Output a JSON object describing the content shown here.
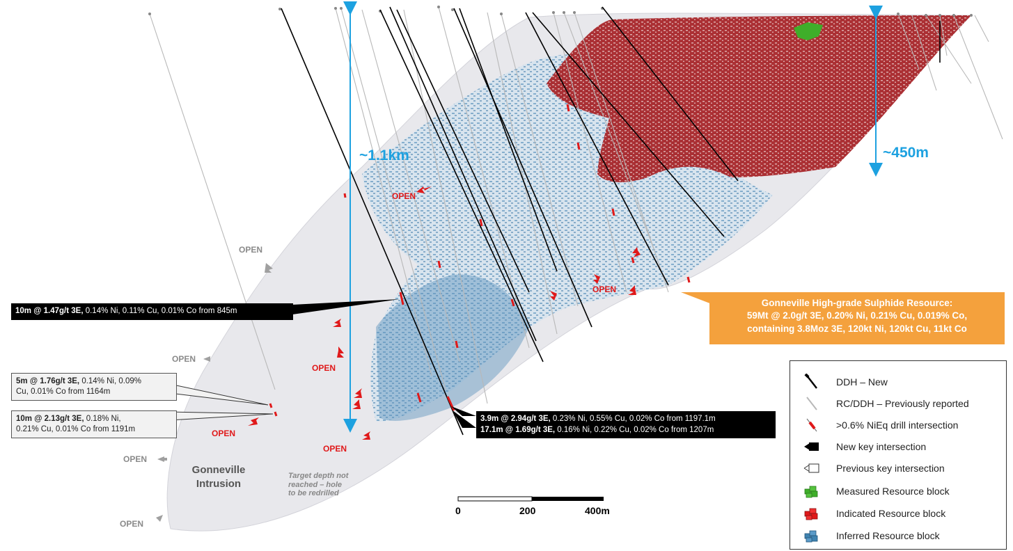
{
  "dimensions": {
    "depth_label": "~1.1km",
    "resource_depth_label": "~450m"
  },
  "open_labels_red": [
    "OPEN",
    "OPEN",
    "OPEN",
    "OPEN",
    "OPEN"
  ],
  "open_labels_grey": [
    "OPEN",
    "OPEN",
    "OPEN",
    "OPEN"
  ],
  "callouts": {
    "c845": {
      "bold": "10m @ 1.47g/t 3E,",
      "rest": " 0.14% Ni, 0.11% Cu, 0.01% Co from 845m"
    },
    "c1164": {
      "bold": "5m @ 1.76g/t 3E,",
      "rest1": " 0.14% Ni, 0.09%",
      "rest2": "Cu, 0.01% Co from 1164m"
    },
    "c1191": {
      "bold": "10m @ 2.13g/t 3E,",
      "rest1": " 0.18% Ni,",
      "rest2": "0.21% Cu, 0.01% Co from 1191m"
    },
    "c1197": {
      "bold": "3.9m @ 2.94g/t 3E,",
      "rest": " 0.23% Ni, 0.55% Cu, 0.02% Co from 1197.1m"
    },
    "c1207": {
      "bold": "17.1m @ 1.69g/t 3E,",
      "rest": " 0.16% Ni, 0.22% Cu, 0.02% Co from 1207m"
    }
  },
  "resource": {
    "line1": "Gonneville High-grade Sulphide Resource:",
    "line2": "59Mt @ 2.0g/t 3E, 0.20% Ni, 0.21% Cu, 0.019% Co,",
    "line3": "containing 3.8Moz 3E, 120kt Ni, 120kt Cu, 11kt Co"
  },
  "intrusion": {
    "line1": "Gonneville",
    "line2": "Intrusion"
  },
  "target_note": {
    "line1": "Target depth not",
    "line2": "reached – hole",
    "line3": "to be redrilled"
  },
  "scale_bar": {
    "label_0": "0",
    "label_200": "200",
    "label_400": "400m"
  },
  "legend": {
    "items": [
      {
        "label": "DDH – New",
        "icon": "new-drillhole-icon"
      },
      {
        "label": "RC/DDH – Previously reported",
        "icon": "previous-drillhole-icon"
      },
      {
        "label": ">0.6% NiEq drill intersection",
        "icon": "intersection-icon"
      },
      {
        "label": "New key intersection",
        "icon": "new-key-intersection-icon"
      },
      {
        "label": "Previous key intersection",
        "icon": "previous-key-intersection-icon"
      },
      {
        "label": "Measured Resource block",
        "icon": "measured-block-icon",
        "color": "#3fae2a"
      },
      {
        "label": "Indicated Resource  block",
        "icon": "indicated-block-icon",
        "color": "#e0191a"
      },
      {
        "label": "Inferred Resource block",
        "icon": "inferred-block-icon",
        "color": "#3f83b0"
      }
    ]
  },
  "colors": {
    "indicated": "#a8262a",
    "inferred": "#5b93bd",
    "measured": "#3fae2a",
    "intersection": "#e0191a",
    "dimension": "#1da1e0",
    "resource_box": "#f4a13d"
  }
}
